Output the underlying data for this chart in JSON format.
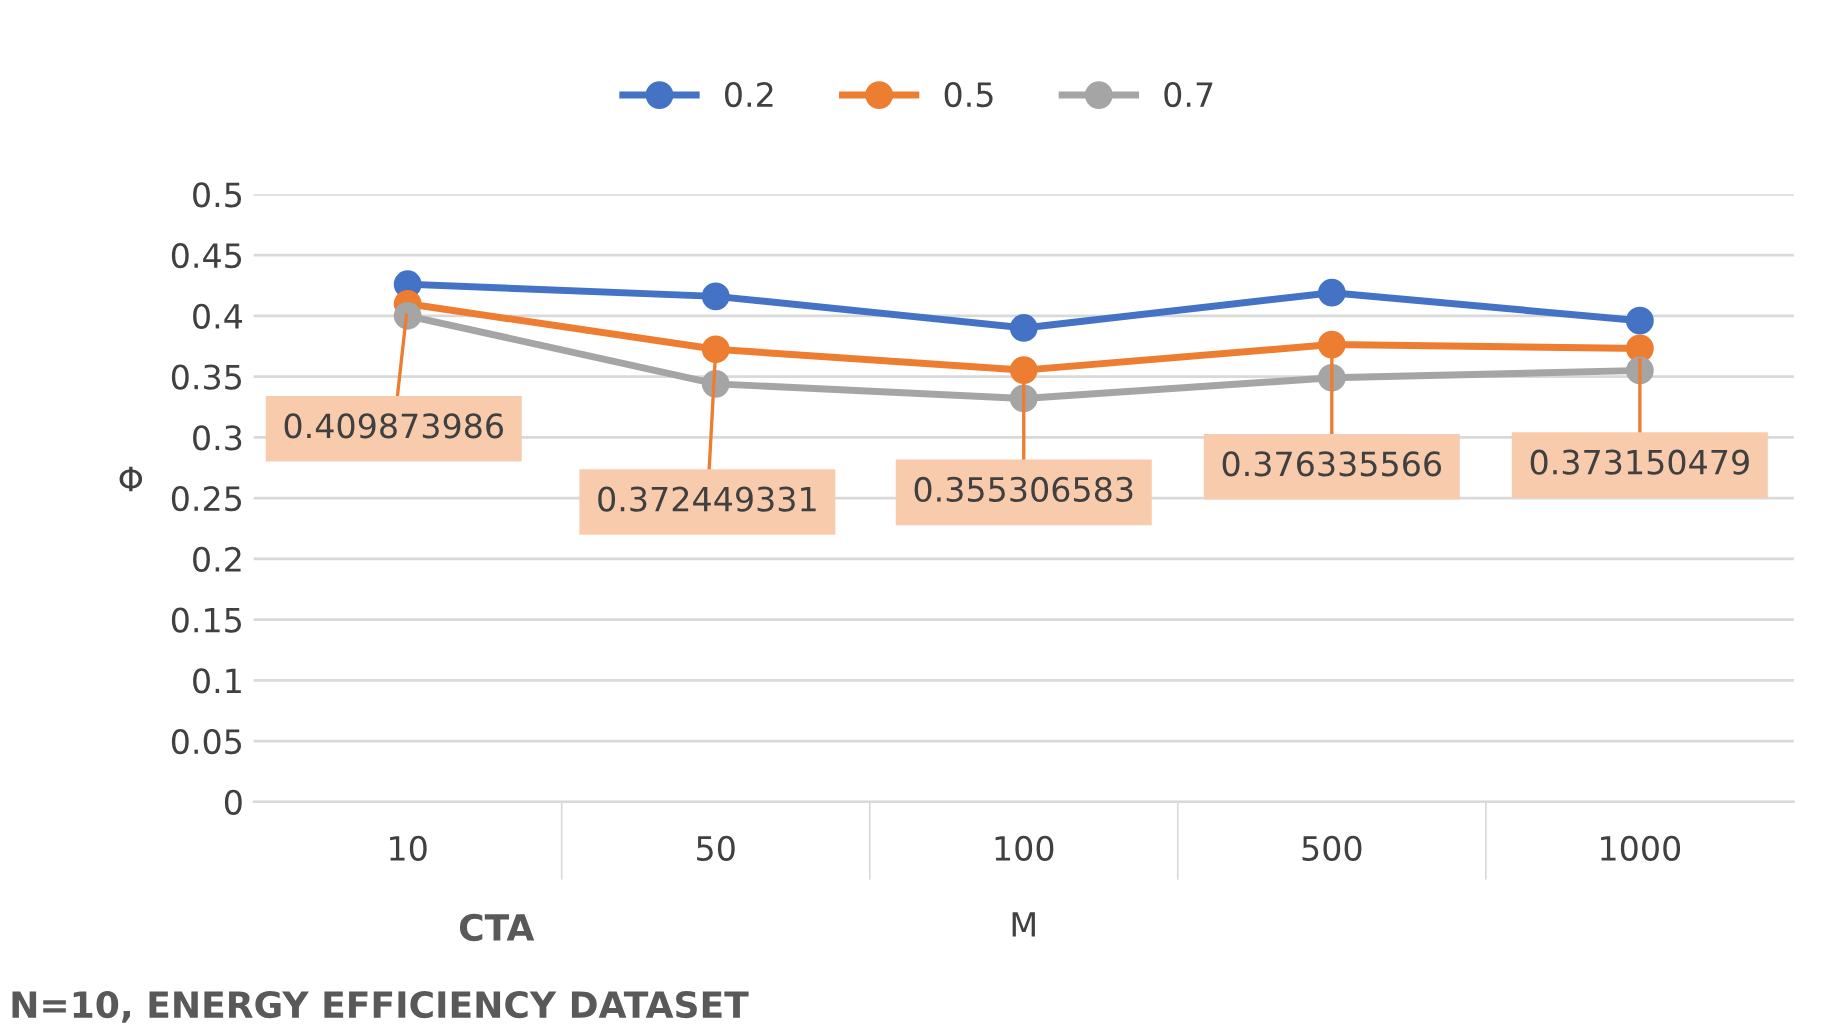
{
  "chart_data": {
    "type": "line",
    "xlabel": "M",
    "ylabel": "Φ",
    "categories": [
      "10",
      "50",
      "100",
      "500",
      "1000"
    ],
    "series": [
      {
        "name": "0.2",
        "color": "#4472c4",
        "values": [
          0.426,
          0.416,
          0.39,
          0.419,
          0.396
        ]
      },
      {
        "name": "0.5",
        "color": "#ed7d31",
        "values": [
          0.409873986,
          0.372449331,
          0.355306583,
          0.376335566,
          0.373150479
        ],
        "value_labels": [
          "0.409873986",
          "0.372449331",
          "0.355306583",
          "0.376335566",
          "0.373150479"
        ]
      },
      {
        "name": "0.7",
        "color": "#a5a5a5",
        "values": [
          0.4,
          0.344,
          0.332,
          0.349,
          0.355
        ]
      }
    ],
    "ylim": [
      0,
      0.5
    ],
    "yticks": [
      0,
      0.05,
      0.1,
      0.15,
      0.2,
      0.25,
      0.3,
      0.35,
      0.4,
      0.45,
      0.5
    ],
    "grid": "y",
    "legend": "top",
    "marker": "circle",
    "line_style": "solid",
    "annotations": [
      "CTA",
      "N=10, ENERGY EFFICIENCY DATASET"
    ]
  }
}
